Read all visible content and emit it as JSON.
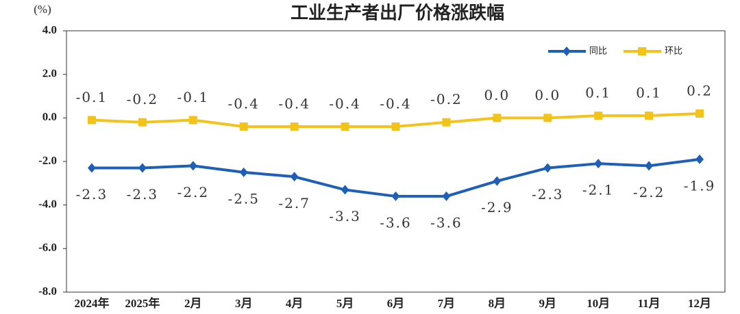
{
  "chart_data": {
    "type": "line",
    "title": "工业生产者出厂价格涨跌幅",
    "y_unit": "(%)",
    "categories": [
      "2024年",
      "2025年",
      "2月",
      "3月",
      "4月",
      "5月",
      "6月",
      "7月",
      "8月",
      "9月",
      "10月",
      "11月",
      "12月"
    ],
    "series": [
      {
        "name": "同比",
        "color": "#1f5fb5",
        "marker": "diamond",
        "values": [
          -2.3,
          -2.3,
          -2.2,
          -2.5,
          -2.7,
          -3.3,
          -3.6,
          -3.6,
          -2.9,
          -2.3,
          -2.1,
          -2.2,
          -1.9
        ]
      },
      {
        "name": "环比",
        "color": "#f2c31a",
        "marker": "square",
        "values": [
          -0.1,
          -0.2,
          -0.1,
          -0.4,
          -0.4,
          -0.4,
          -0.4,
          -0.2,
          0.0,
          0.0,
          0.1,
          0.1,
          0.2
        ],
        "value_labels": [
          "-0.1",
          "-0.2",
          "-0.1",
          "-0.4",
          "-0.4",
          "-0.4",
          "-0.4",
          "-0.2",
          "0.0",
          "0.0",
          "0.1",
          "0.1",
          "0.2"
        ]
      }
    ],
    "ylim": [
      -8,
      4
    ],
    "yticks": [
      {
        "value": 4,
        "label": "4.0"
      },
      {
        "value": 2,
        "label": "2.0"
      },
      {
        "value": 0,
        "label": "0.0"
      },
      {
        "value": -2,
        "label": "-2.0"
      },
      {
        "value": -4,
        "label": "-4.0"
      },
      {
        "value": -6,
        "label": "-6.0"
      },
      {
        "value": -8,
        "label": "-8.0"
      }
    ],
    "grid": false,
    "legend": "top-right"
  }
}
